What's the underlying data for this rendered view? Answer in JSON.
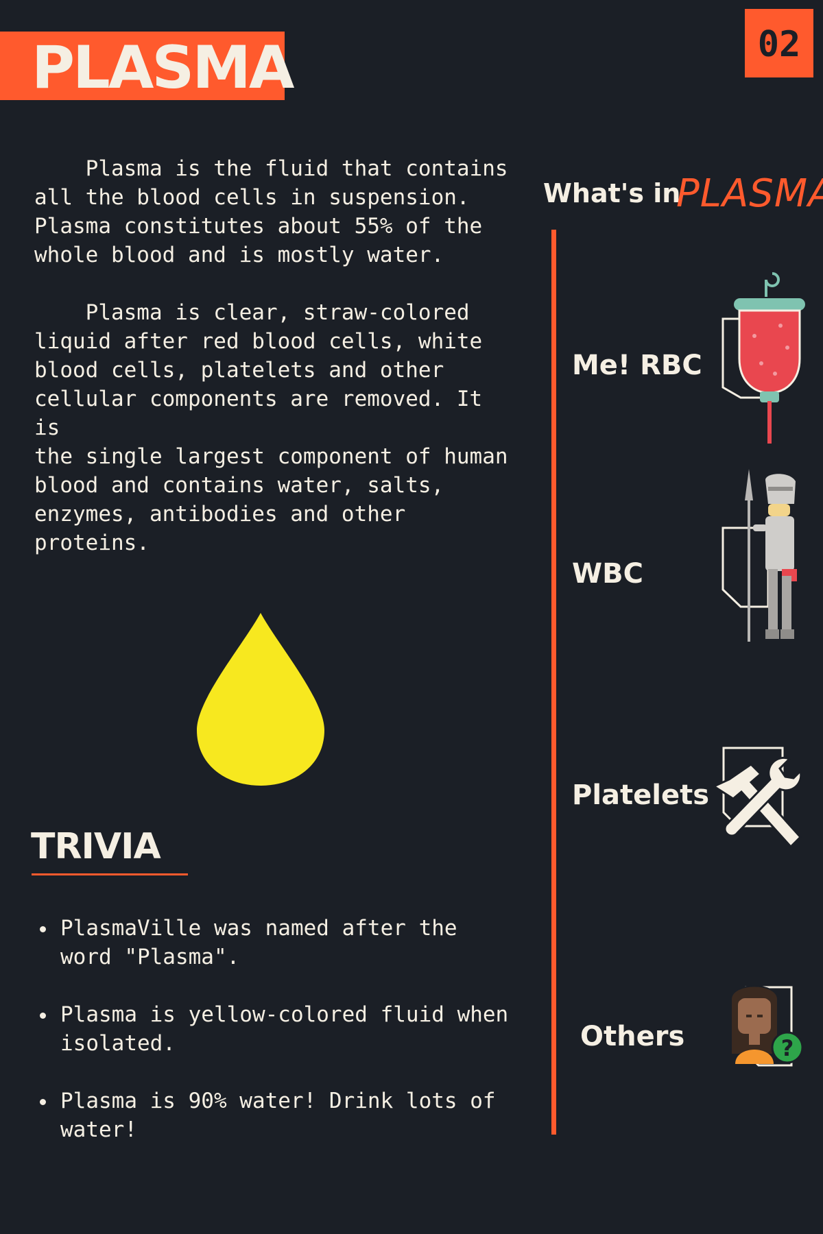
{
  "header": {
    "title": "PLASMA",
    "page_number": "02"
  },
  "intro": {
    "paragraph_1": "    Plasma is the fluid that contains\nall the blood cells in suspension.\nPlasma constitutes about 55% of the\nwhole blood and is mostly water.",
    "paragraph_2": "    Plasma is clear, straw-colored\nliquid after red blood cells, white\nblood cells, platelets and other\ncellular components are removed. It is\nthe single largest component of human\nblood and contains water, salts,\nenzymes, antibodies and other\nproteins."
  },
  "drop": {
    "color": "#f7e81f",
    "icon": "plasma-drop-icon"
  },
  "trivia": {
    "heading": "TRIVIA",
    "items": [
      "PlasmaVille was named after the\nword \"Plasma\".",
      "Plasma is yellow-colored fluid when\nisolated.",
      "Plasma is 90% water! Drink lots of\nwater!"
    ]
  },
  "components": {
    "heading_prefix": "What's in",
    "heading_accent": "PLASMA",
    "items": [
      {
        "label": "Me! RBC",
        "icon": "blood-bag-icon"
      },
      {
        "label": "WBC",
        "icon": "knight-icon"
      },
      {
        "label": "Platelets",
        "icon": "hammer-wrench-icon"
      },
      {
        "label": "Others",
        "icon": "person-question-icon"
      }
    ]
  },
  "colors": {
    "background": "#1b1f26",
    "accent": "#ff5a2d",
    "text": "#f5efe3",
    "drop": "#f7e81f"
  }
}
